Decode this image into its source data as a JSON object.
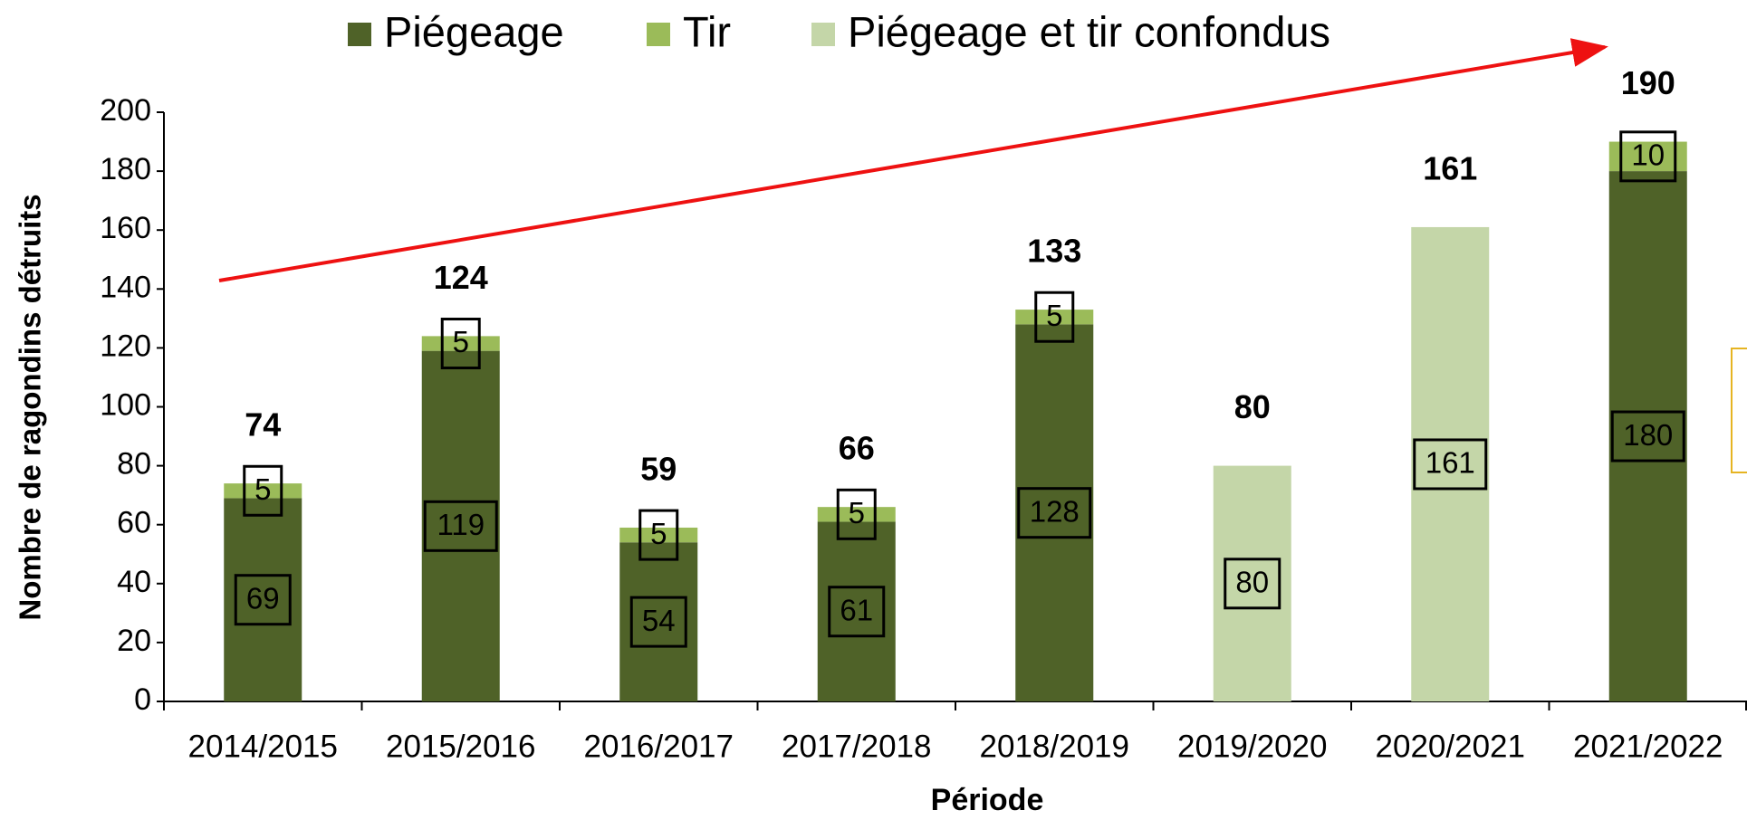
{
  "chart_data": {
    "type": "stacked_bar",
    "x_label": "Période",
    "y_label": "Nombre de ragondins détruits",
    "categories": [
      "2014/2015",
      "2015/2016",
      "2016/2017",
      "2017/2018",
      "2018/2019",
      "2019/2020",
      "2020/2021",
      "2021/2022"
    ],
    "series": [
      {
        "name": "Piégeage",
        "color": "#4f6228",
        "values": [
          69,
          119,
          54,
          61,
          128,
          null,
          null,
          180
        ]
      },
      {
        "name": "Tir",
        "color": "#9bbb59",
        "values": [
          5,
          5,
          5,
          5,
          5,
          null,
          null,
          10
        ]
      },
      {
        "name": "Piégeage et tir confondus",
        "color": "#c4d6a8",
        "values": [
          null,
          null,
          null,
          null,
          null,
          80,
          161,
          null
        ]
      }
    ],
    "totals": [
      74,
      124,
      59,
      66,
      133,
      80,
      161,
      190
    ],
    "ylim": [
      0,
      200
    ],
    "yticks": [
      0,
      20,
      40,
      60,
      80,
      100,
      120,
      140,
      160,
      180,
      200
    ],
    "legend": "top"
  }
}
